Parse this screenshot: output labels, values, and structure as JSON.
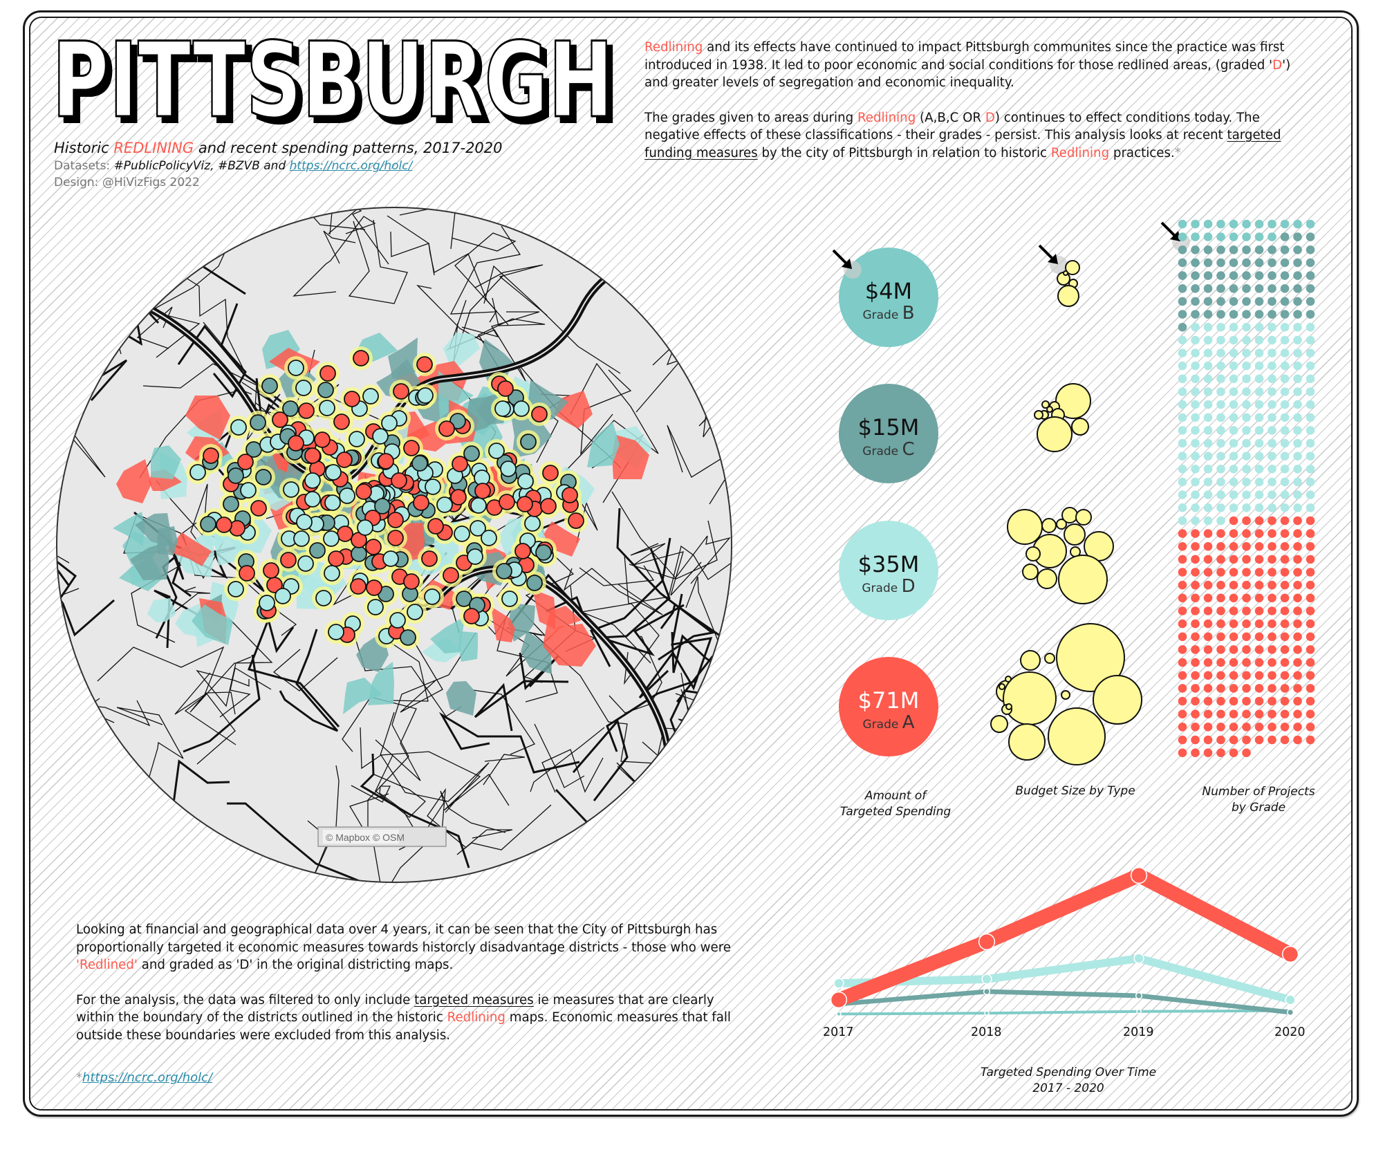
{
  "header": {
    "title": "PITTSBURGH",
    "subtitle_pre": "Historic ",
    "subtitle_red": "REDLINING",
    "subtitle_post": " and recent spending patterns, 2017-2020",
    "datasets_label": "Datasets: ",
    "datasets_value": "#PublicPolicyViz, #BZVB and ",
    "datasets_link": "https://ncrc.org/holc/",
    "design_credit": "Design: @HiVizFigs 2022"
  },
  "intro": {
    "p1": [
      {
        "t": "Redlining",
        "style": "red"
      },
      {
        "t": " and its effects have continued to impact Pittsburgh communites since the practice was first introduced in 1938.  It led to poor economic and social conditions for those redlined areas, (graded '"
      },
      {
        "t": "D",
        "style": "red"
      },
      {
        "t": "') and greater levels of segregation and economic inequality."
      }
    ],
    "p2": [
      {
        "t": "The grades given to areas during "
      },
      {
        "t": "Redlining",
        "style": "red"
      },
      {
        "t": " (A,B,C OR "
      },
      {
        "t": "D",
        "style": "red"
      },
      {
        "t": ") continues to effect conditions today.  The negative effects of these classifications - their grades - persist.  This analysis looks at recent "
      },
      {
        "t": "targeted funding measures",
        "style": "ul"
      },
      {
        "t": " by the city of Pittsburgh in relation to historic "
      },
      {
        "t": "Redlining",
        "style": "red"
      },
      {
        "t": " practices."
      },
      {
        "t": "*",
        "style": "star"
      }
    ]
  },
  "map": {
    "attribution": "© Mapbox © OSM",
    "background": "#e8e8e8",
    "point_halo": "#f7f78a"
  },
  "grades": [
    {
      "grade": "B",
      "amount": "$4M",
      "amount_m": 4,
      "projects": 19,
      "color": "#7ECBC7",
      "amount_text_color": "#111111"
    },
    {
      "grade": "C",
      "amount": "$15M",
      "amount_m": 15,
      "projects": 70,
      "color": "#6FA5A2",
      "amount_text_color": "#111111"
    },
    {
      "grade": "D",
      "amount": "$35M",
      "amount_m": 35,
      "projects": 168,
      "color": "#AEE8E4",
      "amount_text_color": "#111111"
    },
    {
      "grade": "A",
      "amount": "$71M",
      "amount_m": 71,
      "projects": 200,
      "color": "#FF5A4E",
      "amount_text_color": "#ffffff"
    }
  ],
  "grade_label": "Grade ",
  "captions": {
    "amount": [
      "Amount of",
      "Targeted Spending"
    ],
    "budget": [
      "Budget Size by Type"
    ],
    "projects": [
      "Number of Projects",
      "by Grade"
    ],
    "timeline": [
      "Targeted Spending Over Time",
      "2017 - 2020"
    ]
  },
  "bubble_color": "#FFF99A",
  "chart_data": [
    {
      "type": "line",
      "title": "Targeted Spending Over Time 2017 - 2020",
      "xlabel": "",
      "ylabel": "",
      "x": [
        "2017",
        "2018",
        "2019",
        "2020"
      ],
      "grid": false,
      "axis_visible": false,
      "note": "values approximate, estimated from line heights (no y-axis shown)",
      "series": [
        {
          "name": "Grade A",
          "color": "#FF5A4E",
          "values": [
            4,
            18,
            34,
            15
          ]
        },
        {
          "name": "Grade D",
          "color": "#AEE8E4",
          "values": [
            8,
            9,
            14,
            4
          ]
        },
        {
          "name": "Grade C",
          "color": "#6FA5A2",
          "values": [
            3,
            6,
            5,
            1
          ]
        },
        {
          "name": "Grade B",
          "color": "#7ECBC7",
          "values": [
            0.6,
            0.8,
            1.2,
            1.4
          ]
        }
      ]
    },
    {
      "type": "scatter",
      "title": "Number of Projects by Grade",
      "note": "unit/dot matrix, 11 columns, one dot per project",
      "categories": [
        "B",
        "C",
        "D",
        "A"
      ],
      "values": [
        19,
        70,
        168,
        200
      ]
    },
    {
      "type": "pie",
      "title": "Amount of Targeted Spending",
      "note": "proportional circles",
      "categories": [
        "Grade B",
        "Grade C",
        "Grade D",
        "Grade A"
      ],
      "values": [
        4,
        15,
        35,
        71
      ]
    }
  ],
  "bottom": {
    "p1": [
      {
        "t": "Looking at financial and geographical data over 4 years, it can be seen that the City of Pittsburgh has proportionally targeted it economic measures towards historcly disadvantage districts - those who were "
      },
      {
        "t": "'Redlined'",
        "style": "red"
      },
      {
        "t": " and graded as 'D' in the original districting maps."
      }
    ],
    "p2": [
      {
        "t": "For the analysis, the data was filtered to only include "
      },
      {
        "t": "targeted measures",
        "style": "ul"
      },
      {
        "t": " ie measures that are clearly within the boundary of the districts outlined in the historic "
      },
      {
        "t": "Redlining",
        "style": "red"
      },
      {
        "t": " maps.  Economic measures that fall outside these boundaries were excluded from this analysis."
      }
    ],
    "footnote_star": "*",
    "footnote_link": "https://ncrc.org/holc/"
  }
}
